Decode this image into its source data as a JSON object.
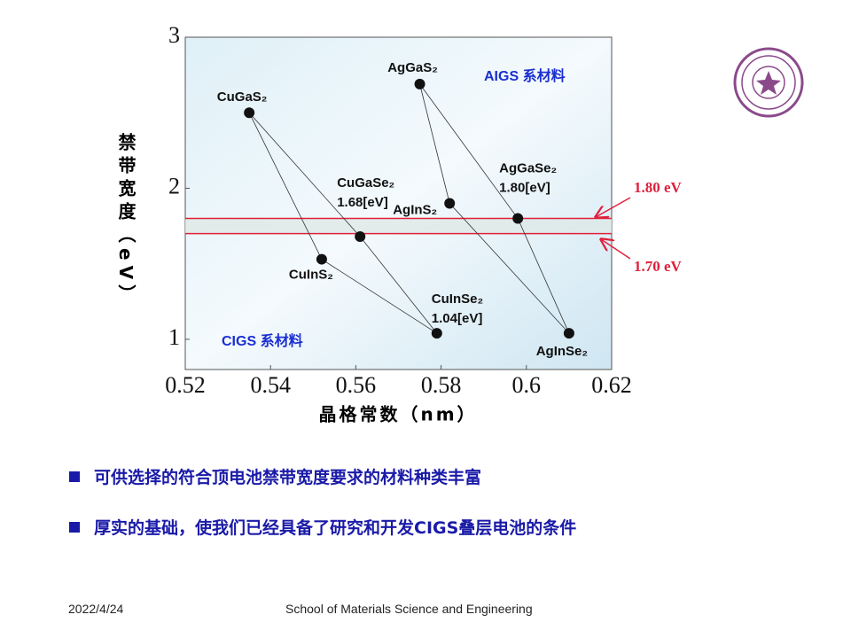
{
  "chart_data": {
    "type": "scatter",
    "y_label": "禁带宽度（eV）",
    "x_label": "晶格常数（nm）",
    "regions": [
      "AIGS 系材料",
      "CIGS 系材料"
    ],
    "point_labels": [
      "CuGaS₂",
      "CuInS₂",
      "CuGaSe₂",
      "CuInSe₂",
      "AgGaS₂",
      "AgInS₂",
      "AgGaSe₂",
      "AgInSe₂"
    ],
    "x": [
      0.535,
      0.552,
      0.561,
      0.579,
      0.575,
      0.582,
      0.598,
      0.61
    ],
    "values": [
      2.5,
      1.53,
      1.68,
      1.04,
      2.69,
      1.9,
      1.8,
      1.04
    ],
    "value_labels": [
      null,
      null,
      "1.68[eV]",
      "1.04[eV]",
      null,
      null,
      "1.80[eV]",
      null
    ],
    "color": "#111111",
    "xlim": [
      0.52,
      0.62
    ],
    "ylim": [
      0.8,
      3.0
    ],
    "xticks": [
      {
        "value": 0.52,
        "label": "0.52"
      },
      {
        "value": 0.54,
        "label": "0.54"
      },
      {
        "value": 0.56,
        "label": "0.56"
      },
      {
        "value": 0.58,
        "label": "0.58"
      },
      0.6,
      {
        "value": 0.62,
        "label": "0.62"
      }
    ],
    "yticks": [
      1,
      2,
      3
    ],
    "annotations": [
      {
        "value": 1.8,
        "label": "1.80 eV"
      },
      {
        "value": 1.7,
        "label": "1.70 eV"
      }
    ],
    "band_color": "#e0203c"
  },
  "bullets": [
    "可供选择的符合顶电池禁带宽度要求的材料种类丰富",
    "厚实的基础，使我们已经具备了研究和开发CIGS叠层电池的条件"
  ],
  "footer": {
    "date": "2022/4/24",
    "school": "School of Materials Science and Engineering"
  }
}
